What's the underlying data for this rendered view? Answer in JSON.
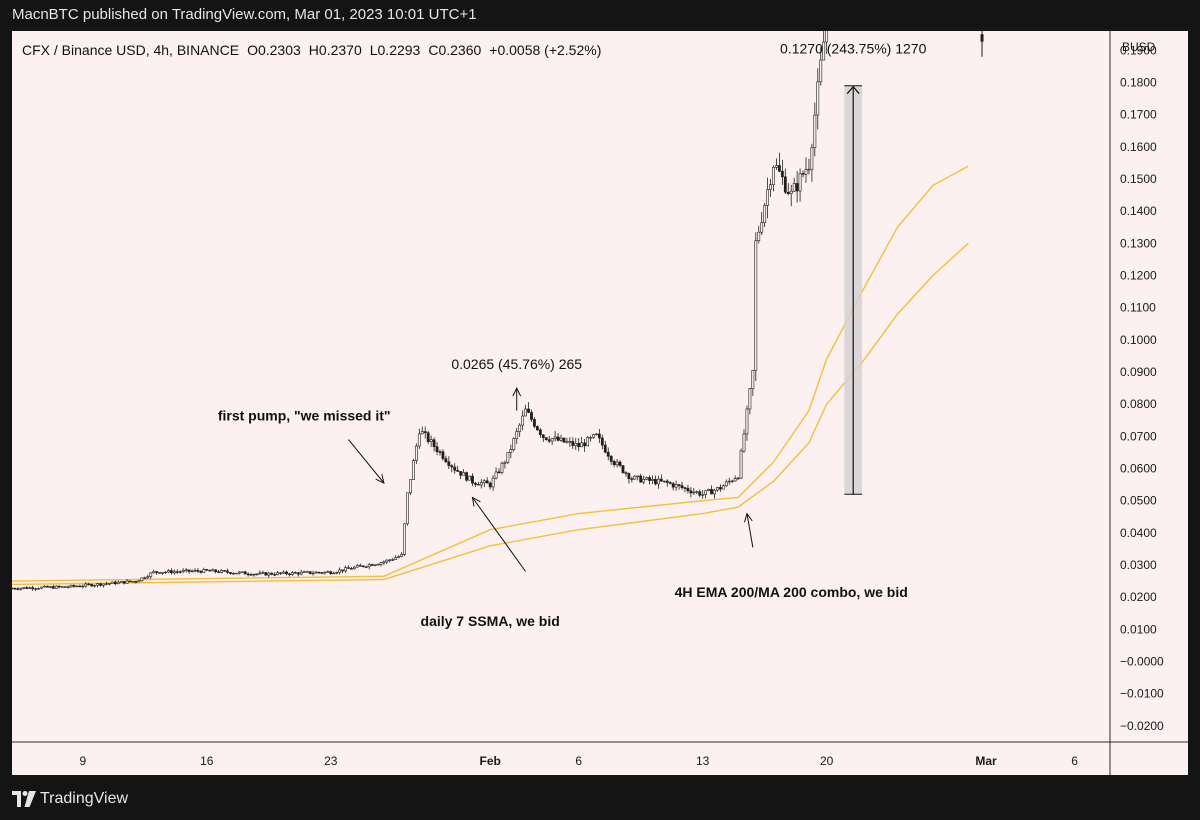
{
  "header": {
    "published_line": "MacnBTC published on TradingView.com, Mar 01, 2023 10:01 UTC+1"
  },
  "footer": {
    "brand_name": "TradingView"
  },
  "colors": {
    "panel_bg": "#fcf0f1",
    "frame_bg": "#141414",
    "candle": "#1f1f1f",
    "ma_line": "#f5bf3a",
    "measure_box": "#d5d1d2"
  },
  "chart_data": {
    "type": "candlestick",
    "symbol_line": {
      "symbol": "CFX / Binance USD, 4h, BINANCE",
      "open": "O0.2303",
      "high": "H0.2370",
      "low": "L0.2293",
      "close": "C0.2360",
      "change": "+0.0058 (+2.52%)"
    },
    "y_axis": {
      "unit_label": "BUSD",
      "ticks": [
        "0.1900",
        "0.1800",
        "0.1700",
        "0.1600",
        "0.1500",
        "0.1400",
        "0.1300",
        "0.1200",
        "0.1100",
        "0.1000",
        "0.0900",
        "0.0800",
        "0.0700",
        "0.0600",
        "0.0500",
        "0.0400",
        "0.0300",
        "0.0200",
        "0.0100",
        "−0.0000",
        "−0.0100",
        "−0.0200"
      ],
      "range": [
        -0.025,
        0.196
      ]
    },
    "x_axis": {
      "ticks": [
        {
          "label": "9",
          "date": "2023-01-09",
          "bold": false
        },
        {
          "label": "16",
          "date": "2023-01-16",
          "bold": false
        },
        {
          "label": "23",
          "date": "2023-01-23",
          "bold": false
        },
        {
          "label": "Feb",
          "date": "2023-02-01",
          "bold": true
        },
        {
          "label": "6",
          "date": "2023-02-06",
          "bold": false
        },
        {
          "label": "13",
          "date": "2023-02-13",
          "bold": false
        },
        {
          "label": "20",
          "date": "2023-02-20",
          "bold": false
        },
        {
          "label": "Mar",
          "date": "2023-03-01",
          "bold": true
        },
        {
          "label": "6",
          "date": "2023-03-06",
          "bold": false
        }
      ],
      "range": [
        "2023-01-05",
        "2023-03-08"
      ]
    },
    "price_path": [
      [
        "2023-01-05",
        0.0228
      ],
      [
        "2023-01-08",
        0.0232
      ],
      [
        "2023-01-12",
        0.025
      ],
      [
        "2023-01-13",
        0.0278
      ],
      [
        "2023-01-16",
        0.0282
      ],
      [
        "2023-01-19",
        0.0272
      ],
      [
        "2023-01-23",
        0.0278
      ],
      [
        "2023-01-26",
        0.031
      ],
      [
        "2023-01-27",
        0.033
      ],
      [
        "2023-01-27T08",
        0.052
      ],
      [
        "2023-01-28",
        0.072
      ],
      [
        "2023-01-29",
        0.066
      ],
      [
        "2023-01-30",
        0.06
      ],
      [
        "2023-01-31",
        0.056
      ],
      [
        "2023-02-01",
        0.055
      ],
      [
        "2023-02-02",
        0.064
      ],
      [
        "2023-02-03",
        0.078
      ],
      [
        "2023-02-04",
        0.07
      ],
      [
        "2023-02-06",
        0.067
      ],
      [
        "2023-02-07",
        0.07
      ],
      [
        "2023-02-08",
        0.062
      ],
      [
        "2023-02-09",
        0.057
      ],
      [
        "2023-02-11",
        0.0555
      ],
      [
        "2023-02-13",
        0.052
      ],
      [
        "2023-02-14",
        0.054
      ],
      [
        "2023-02-15",
        0.058
      ],
      [
        "2023-02-15T20",
        0.09
      ],
      [
        "2023-02-16",
        0.13
      ],
      [
        "2023-02-17",
        0.155
      ],
      [
        "2023-02-18",
        0.145
      ],
      [
        "2023-02-19",
        0.155
      ],
      [
        "2023-02-20",
        0.2
      ]
    ],
    "partial_candles_top_right": [
      {
        "date": "2023-03-01",
        "open": 0.195,
        "high": 0.2,
        "low": 0.188,
        "close": 0.193
      }
    ],
    "series": [
      {
        "name": "",
        "color": "#f5bf3a",
        "points": [
          [
            "2023-01-05",
            0.025
          ],
          [
            "2023-01-26",
            0.0265
          ],
          [
            "2023-02-01",
            0.041
          ],
          [
            "2023-02-06",
            0.046
          ],
          [
            "2023-02-13",
            0.05
          ],
          [
            "2023-02-15",
            0.051
          ],
          [
            "2023-02-17",
            0.062
          ],
          [
            "2023-02-19",
            0.078
          ],
          [
            "2023-02-20",
            0.094
          ],
          [
            "2023-02-22",
            0.115
          ],
          [
            "2023-02-24",
            0.135
          ],
          [
            "2023-02-26",
            0.148
          ],
          [
            "2023-02-28",
            0.154
          ]
        ]
      },
      {
        "name": "",
        "color": "#f5bf3a",
        "points": [
          [
            "2023-01-05",
            0.024
          ],
          [
            "2023-01-26",
            0.0255
          ],
          [
            "2023-02-01",
            0.036
          ],
          [
            "2023-02-06",
            0.041
          ],
          [
            "2023-02-13",
            0.046
          ],
          [
            "2023-02-15",
            0.048
          ],
          [
            "2023-02-17",
            0.056
          ],
          [
            "2023-02-19",
            0.068
          ],
          [
            "2023-02-20",
            0.08
          ],
          [
            "2023-02-22",
            0.093
          ],
          [
            "2023-02-24",
            0.108
          ],
          [
            "2023-02-26",
            0.12
          ],
          [
            "2023-02-28",
            0.13
          ]
        ]
      }
    ],
    "measure_box": {
      "date_from": "2023-02-21",
      "date_to": "2023-02-22",
      "bottom": 0.052,
      "top": 0.179
    },
    "annotations": [
      {
        "id": "first-pump",
        "text": "first pump, \"we missed it\"",
        "bold": true,
        "anchor_date": "2023-01-21T12",
        "anchor_value": 0.075,
        "arrow": {
          "from": [
            "2023-01-24",
            0.069
          ],
          "to": [
            "2023-01-26",
            0.0555
          ]
        }
      },
      {
        "id": "daily-ssma",
        "text": "daily 7 SSMA, we bid",
        "bold": true,
        "anchor_date": "2023-02-01",
        "anchor_value": 0.011,
        "arrow": {
          "from": [
            "2023-02-03",
            0.028
          ],
          "to": [
            "2023-01-31",
            0.051
          ]
        }
      },
      {
        "id": "ema-combo",
        "text": "4H EMA 200/MA 200 combo, we bid",
        "bold": true,
        "anchor_date": "2023-02-18",
        "anchor_value": 0.02,
        "arrow": {
          "from": [
            "2023-02-15T20",
            0.0355
          ],
          "to": [
            "2023-02-15T12",
            0.046
          ]
        }
      },
      {
        "id": "measure-small",
        "text": "0.0265 (45.76%) 265",
        "bold": false,
        "anchor_date": "2023-02-02T12",
        "anchor_value": 0.091,
        "arrow": {
          "from": [
            "2023-02-02T12",
            0.078
          ],
          "to": [
            "2023-02-02T12",
            0.085
          ]
        }
      },
      {
        "id": "measure-big",
        "text": "0.1270 (243.75%) 1270",
        "bold": false,
        "anchor_date": "2023-02-21T12",
        "anchor_value": 0.189
      }
    ]
  }
}
